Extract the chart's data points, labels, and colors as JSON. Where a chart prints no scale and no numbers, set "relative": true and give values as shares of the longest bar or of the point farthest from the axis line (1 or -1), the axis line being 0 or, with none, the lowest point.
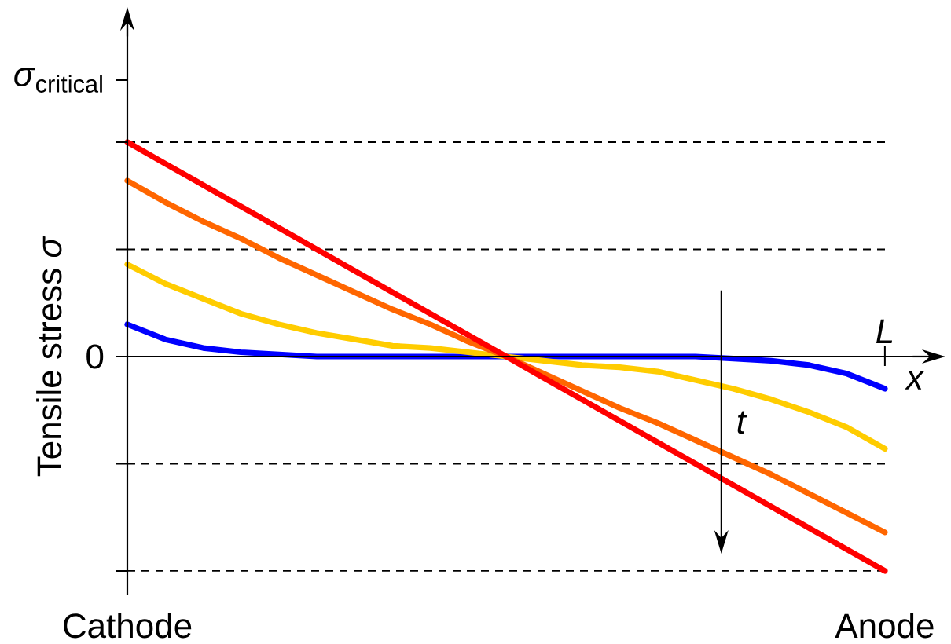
{
  "chart_data": {
    "type": "line",
    "xlabel": "x",
    "ylabel": "Tensile stress *σ*",
    "relative": true,
    "categories": [
      "Cathode",
      null,
      null,
      null,
      null,
      null,
      null,
      null,
      null,
      null,
      null,
      null,
      null,
      null,
      null,
      null,
      null,
      null,
      null,
      null,
      "Anode"
    ],
    "series": [
      {
        "color": "#0000ff",
        "values": [
          0.15,
          0.08,
          0.04,
          0.02,
          0.01,
          0,
          0,
          0,
          0,
          0,
          0,
          0,
          0,
          0,
          0,
          0,
          -0.01,
          -0.02,
          -0.04,
          -0.08,
          -0.15
        ]
      },
      {
        "color": "#ffcc00",
        "values": [
          0.43,
          0.34,
          0.27,
          0.2,
          0.15,
          0.11,
          0.08,
          0.05,
          0.04,
          0.02,
          0,
          -0.02,
          -0.04,
          -0.05,
          -0.07,
          -0.11,
          -0.15,
          -0.2,
          -0.26,
          -0.33,
          -0.43
        ]
      },
      {
        "color": "#ff6600",
        "values": [
          0.82,
          0.72,
          0.63,
          0.55,
          0.46,
          0.38,
          0.3,
          0.22,
          0.15,
          0.07,
          0,
          -0.08,
          -0.16,
          -0.24,
          -0.31,
          -0.39,
          -0.47,
          -0.55,
          -0.64,
          -0.73,
          -0.82
        ]
      },
      {
        "color": "#ff0000",
        "values": [
          1,
          0.9,
          0.8,
          0.7,
          0.6,
          0.5,
          0.4,
          0.3,
          0.2,
          0.1,
          0,
          -0.1,
          -0.2,
          -0.3,
          -0.4,
          -0.5,
          -0.6,
          -0.7,
          -0.8,
          -0.9,
          -1
        ]
      }
    ],
    "ref_lines": [
      {
        "axis": "y",
        "value": 1,
        "color": "#000000",
        "line_style": "dashed"
      },
      {
        "axis": "y",
        "value": 0.5,
        "color": "#000000",
        "line_style": "dashed"
      },
      {
        "axis": "y",
        "value": -0.5,
        "color": "#000000",
        "line_style": "dashed"
      },
      {
        "axis": "y",
        "value": -1,
        "color": "#000000",
        "line_style": "dashed"
      }
    ],
    "annotations": [
      "*σ*$_{critical}$",
      "0",
      "L",
      "t"
    ]
  }
}
